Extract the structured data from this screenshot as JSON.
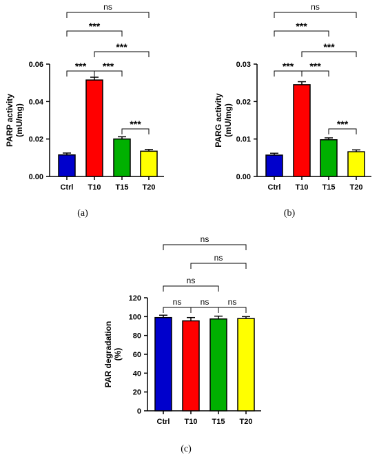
{
  "chart_data": [
    {
      "type": "bar",
      "caption": "(a)",
      "ylabel": "PARP activity\n(mU/mg)",
      "categories": [
        "Ctrl",
        "T10",
        "T15",
        "T20"
      ],
      "values": [
        0.0115,
        0.0515,
        0.02,
        0.0135
      ],
      "errors": [
        0.001,
        0.0015,
        0.0012,
        0.0009
      ],
      "colors": [
        "#0000cc",
        "#ff0000",
        "#00b000",
        "#ffff00"
      ],
      "ylim": [
        0,
        0.06
      ],
      "yticks": [
        "0.00",
        "0.02",
        "0.04",
        "0.06"
      ],
      "significance": [
        {
          "from": 0,
          "to": 3,
          "label": "ns"
        },
        {
          "from": 0,
          "to": 2,
          "label": "***"
        },
        {
          "from": 1,
          "to": 3,
          "label": "***"
        },
        {
          "from": 0,
          "to": 1,
          "label": "***"
        },
        {
          "from": 1,
          "to": 2,
          "label": "***"
        },
        {
          "from": 2,
          "to": 3,
          "label": "***"
        }
      ]
    },
    {
      "type": "bar",
      "caption": "(b)",
      "ylabel": "PARG activity\n(mU/mg)",
      "categories": [
        "Ctrl",
        "T10",
        "T15",
        "T20"
      ],
      "values": [
        0.0057,
        0.0245,
        0.0098,
        0.0066
      ],
      "errors": [
        0.0005,
        0.0008,
        0.0005,
        0.0005
      ],
      "colors": [
        "#0000cc",
        "#ff0000",
        "#00b000",
        "#ffff00"
      ],
      "ylim": [
        0,
        0.03
      ],
      "yticks": [
        "0.00",
        "0.01",
        "0.02",
        "0.03"
      ],
      "significance": [
        {
          "from": 0,
          "to": 3,
          "label": "ns"
        },
        {
          "from": 0,
          "to": 2,
          "label": "***"
        },
        {
          "from": 1,
          "to": 3,
          "label": "***"
        },
        {
          "from": 0,
          "to": 1,
          "label": "***"
        },
        {
          "from": 1,
          "to": 2,
          "label": "***"
        },
        {
          "from": 2,
          "to": 3,
          "label": "***"
        }
      ]
    },
    {
      "type": "bar",
      "caption": "(c)",
      "ylabel": "PAR degradation\n(%)",
      "categories": [
        "Ctrl",
        "T10",
        "T15",
        "T20"
      ],
      "values": [
        99,
        95.5,
        97.5,
        98
      ],
      "errors": [
        2.5,
        3.5,
        3,
        2
      ],
      "colors": [
        "#0000cc",
        "#ff0000",
        "#00b000",
        "#ffff00"
      ],
      "ylim": [
        0,
        120
      ],
      "yticks": [
        "0",
        "20",
        "40",
        "60",
        "80",
        "100",
        "120"
      ],
      "significance": [
        {
          "from": 0,
          "to": 3,
          "label": "ns"
        },
        {
          "from": 1,
          "to": 3,
          "label": "ns"
        },
        {
          "from": 0,
          "to": 2,
          "label": "ns"
        },
        {
          "from": 0,
          "to": 1,
          "label": "ns"
        },
        {
          "from": 1,
          "to": 2,
          "label": "ns"
        },
        {
          "from": 2,
          "to": 3,
          "label": "ns"
        }
      ]
    }
  ]
}
